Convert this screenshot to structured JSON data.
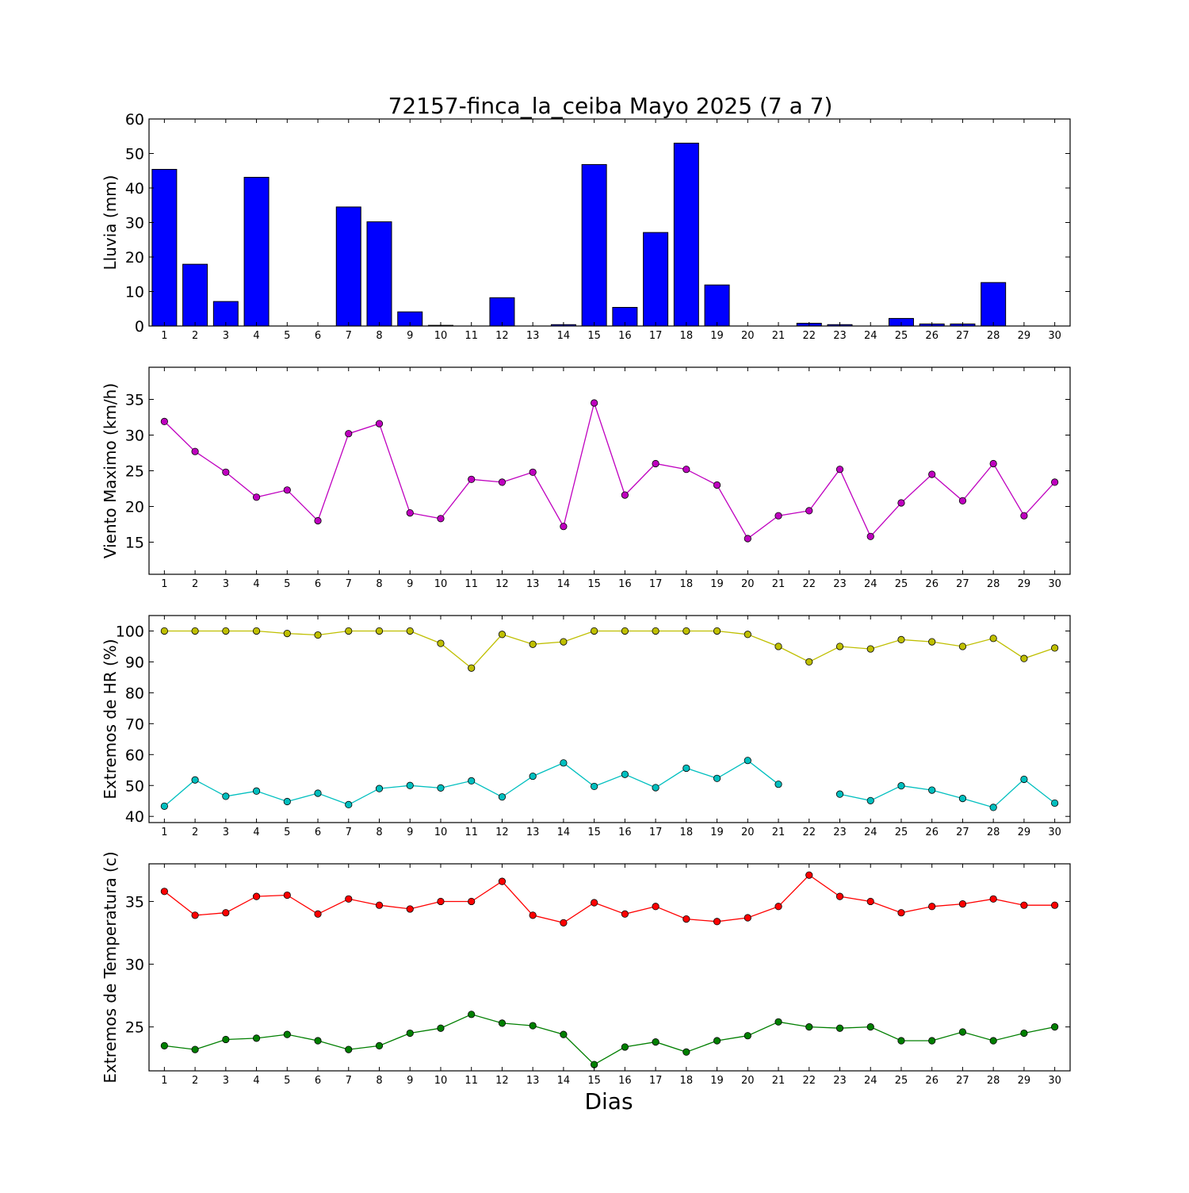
{
  "title": "72157-finca_la_ceiba Mayo 2025  (7 a 7)",
  "xlabel": "Dias",
  "days": [
    1,
    2,
    3,
    4,
    5,
    6,
    7,
    8,
    9,
    10,
    11,
    12,
    13,
    14,
    15,
    16,
    17,
    18,
    19,
    20,
    21,
    22,
    23,
    24,
    25,
    26,
    27,
    28,
    29,
    30
  ],
  "chart_data": [
    {
      "type": "bar",
      "ylabel": "Lluvia (mm)",
      "ylim": [
        0,
        60
      ],
      "yticks": [
        0,
        10,
        20,
        30,
        40,
        50,
        60
      ],
      "x": [
        1,
        2,
        3,
        4,
        5,
        6,
        7,
        8,
        9,
        10,
        11,
        12,
        13,
        14,
        15,
        16,
        17,
        18,
        19,
        20,
        21,
        22,
        23,
        24,
        25,
        26,
        27,
        28,
        29,
        30
      ],
      "series": [
        {
          "color": "#0000ff",
          "values": [
            45.4,
            17.9,
            7.1,
            43.1,
            0,
            0,
            34.5,
            30.2,
            4.1,
            0.2,
            0,
            8.2,
            0,
            0.4,
            46.8,
            5.4,
            27.1,
            53.0,
            11.9,
            0,
            0,
            0.8,
            0.4,
            0,
            2.2,
            0.6,
            0.6,
            12.6,
            0,
            0
          ]
        }
      ]
    },
    {
      "type": "line",
      "ylabel": "Viento Maximo (km/h)",
      "ylim": [
        10.5,
        39.5
      ],
      "yticks": [
        15,
        20,
        25,
        30,
        35
      ],
      "x": [
        1,
        2,
        3,
        4,
        5,
        6,
        7,
        8,
        9,
        10,
        11,
        12,
        13,
        14,
        15,
        16,
        17,
        18,
        19,
        20,
        21,
        22,
        23,
        24,
        25,
        26,
        27,
        28,
        29,
        30
      ],
      "series": [
        {
          "color": "#bf00bf",
          "values": [
            31.9,
            27.7,
            24.8,
            21.3,
            22.3,
            18.0,
            30.2,
            31.6,
            19.1,
            18.3,
            23.8,
            23.4,
            24.8,
            17.2,
            34.5,
            21.6,
            26.0,
            25.2,
            23.0,
            15.5,
            18.7,
            19.4,
            25.2,
            15.8,
            20.5,
            24.5,
            20.8,
            26.0,
            18.7,
            23.4
          ]
        }
      ]
    },
    {
      "type": "line",
      "ylabel": "Extremos de HR (%)",
      "ylim": [
        38,
        105
      ],
      "yticks": [
        40,
        50,
        60,
        70,
        80,
        90,
        100
      ],
      "x": [
        1,
        2,
        3,
        4,
        5,
        6,
        7,
        8,
        9,
        10,
        11,
        12,
        13,
        14,
        15,
        16,
        17,
        18,
        19,
        20,
        21,
        22,
        23,
        24,
        25,
        26,
        27,
        28,
        29,
        30
      ],
      "series": [
        {
          "color": "#bfbf00",
          "values": [
            100,
            100,
            100,
            100,
            99.2,
            98.7,
            100,
            100,
            100,
            96,
            88,
            98.9,
            95.7,
            96.5,
            100,
            100,
            100,
            100,
            100,
            98.9,
            95,
            90,
            95,
            94.2,
            97.2,
            96.5,
            95,
            97.6,
            91.1,
            94.5
          ]
        },
        {
          "color": "#00bfbf",
          "values": [
            43.3,
            51.8,
            46.5,
            48.2,
            44.8,
            47.5,
            43.8,
            49.0,
            50.0,
            49.2,
            51.5,
            46.3,
            53.0,
            57.3,
            49.7,
            53.6,
            49.3,
            55.6,
            52.3,
            58.1,
            50.4,
            null,
            47.2,
            45.1,
            49.9,
            48.5,
            45.8,
            42.9,
            52.0,
            44.3
          ]
        }
      ]
    },
    {
      "type": "line",
      "ylabel": "Extremos de Temperatura (c)",
      "ylim": [
        21.5,
        38
      ],
      "yticks": [
        25,
        30,
        35
      ],
      "x": [
        1,
        2,
        3,
        4,
        5,
        6,
        7,
        8,
        9,
        10,
        11,
        12,
        13,
        14,
        15,
        16,
        17,
        18,
        19,
        20,
        21,
        22,
        23,
        24,
        25,
        26,
        27,
        28,
        29,
        30
      ],
      "series": [
        {
          "color": "#ff0000",
          "values": [
            35.8,
            33.9,
            34.1,
            35.4,
            35.5,
            34.0,
            35.2,
            34.7,
            34.4,
            35.0,
            35.0,
            36.6,
            33.9,
            33.3,
            34.9,
            34.0,
            34.6,
            33.6,
            33.4,
            33.7,
            34.6,
            37.1,
            35.4,
            35.0,
            34.1,
            34.6,
            34.8,
            35.2,
            34.7,
            34.7
          ]
        },
        {
          "color": "#007f00",
          "values": [
            23.5,
            23.2,
            24.0,
            24.1,
            24.4,
            23.9,
            23.2,
            23.5,
            24.5,
            24.9,
            26.0,
            25.3,
            25.1,
            24.4,
            22.0,
            23.4,
            23.8,
            23.0,
            23.9,
            24.3,
            25.4,
            25.0,
            24.9,
            25.0,
            23.9,
            23.9,
            24.6,
            23.9,
            24.5,
            25.0
          ]
        }
      ]
    }
  ]
}
